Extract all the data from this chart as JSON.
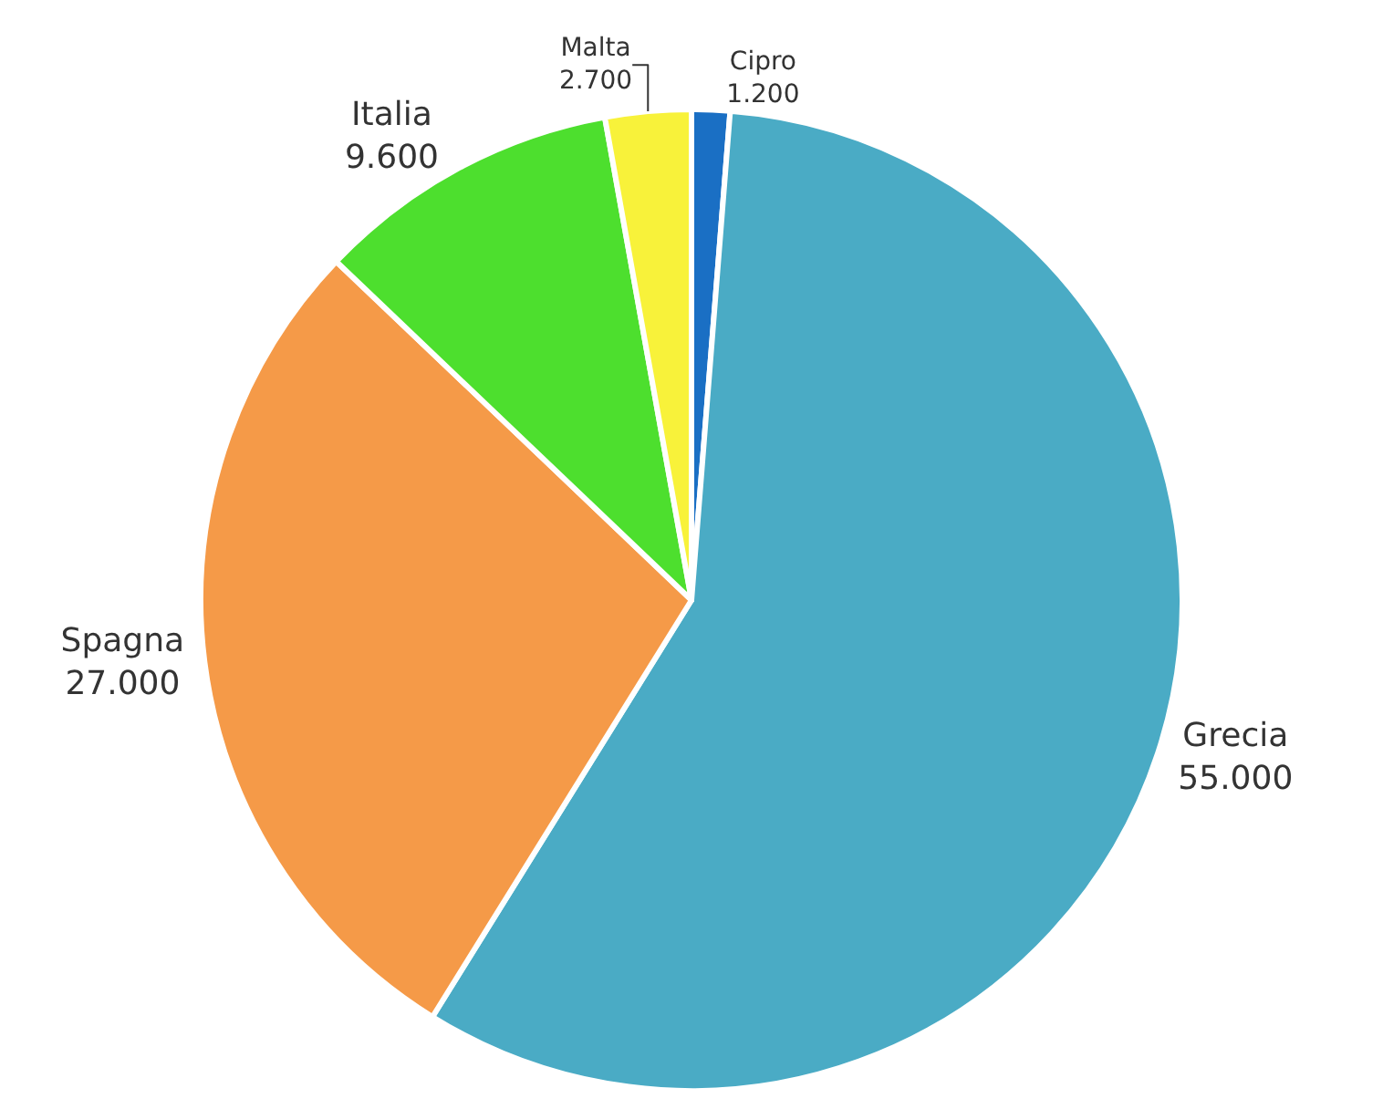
{
  "chart_data": {
    "type": "pie",
    "categories": [
      "Cipro",
      "Grecia",
      "Spagna",
      "Italia",
      "Malta"
    ],
    "values": [
      1200,
      55000,
      27000,
      9600,
      2700
    ],
    "value_labels": [
      "1.200",
      "55.000",
      "27.000",
      "9.600",
      "2.700"
    ],
    "colors": [
      "#1a6fc4",
      "#4aabc5",
      "#f59a48",
      "#4ddf2e",
      "#f8f23a"
    ],
    "legend": false
  }
}
